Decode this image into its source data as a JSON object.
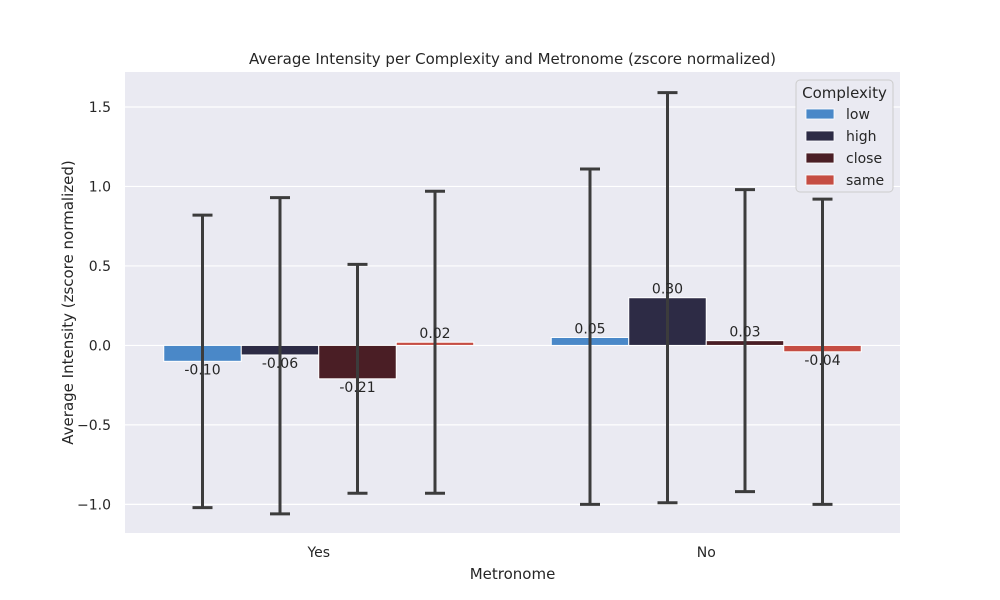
{
  "chart_data": {
    "type": "bar",
    "title": "Average Intensity per Complexity and Metronome (zscore normalized)",
    "xlabel": "Metronome",
    "ylabel": "Average Intensity (zscore normalized)",
    "categories": [
      "Yes",
      "No"
    ],
    "ylim": [
      -1.18,
      1.72
    ],
    "yticks": [
      1.5,
      1.0,
      0.5,
      0.0,
      -0.5,
      -1.0
    ],
    "ytick_labels": [
      "1.5",
      "1.0",
      "0.5",
      "0.0",
      "−0.5",
      "−1.0"
    ],
    "grid": true,
    "legend": {
      "title": "Complexity",
      "placement": "top-right"
    },
    "series": [
      {
        "name": "low",
        "color": "#4a88c8",
        "values": [
          -0.1,
          0.05
        ],
        "labels": [
          "-0.10",
          "0.05"
        ],
        "err_low": [
          -1.02,
          -1.0
        ],
        "err_high": [
          0.82,
          1.11
        ]
      },
      {
        "name": "high",
        "color": "#2d2b45",
        "values": [
          -0.06,
          0.3
        ],
        "labels": [
          "-0.06",
          "0.30"
        ],
        "err_low": [
          -1.06,
          -0.99
        ],
        "err_high": [
          0.93,
          1.59
        ]
      },
      {
        "name": "close",
        "color": "#4a1e25",
        "values": [
          -0.21,
          0.03
        ],
        "labels": [
          "-0.21",
          "0.03"
        ],
        "err_low": [
          -0.93,
          -0.92
        ],
        "err_high": [
          0.51,
          0.98
        ]
      },
      {
        "name": "same",
        "color": "#c54d43",
        "values": [
          0.02,
          -0.04
        ],
        "labels": [
          "0.02",
          "-0.04"
        ],
        "err_low": [
          -0.93,
          -1.0
        ],
        "err_high": [
          0.97,
          0.92
        ]
      }
    ]
  }
}
